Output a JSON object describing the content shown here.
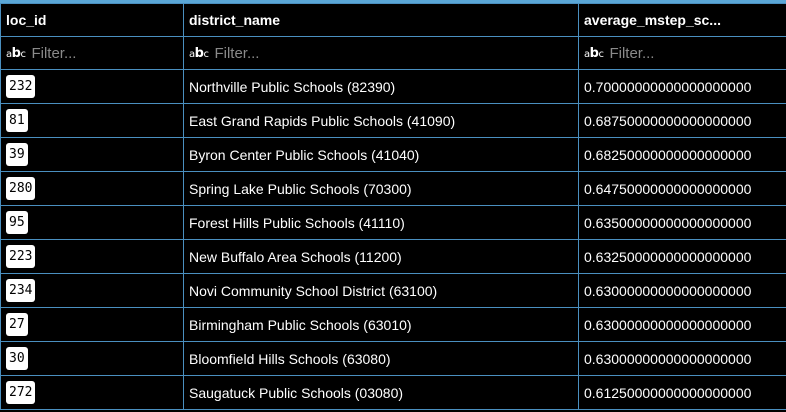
{
  "columns": [
    {
      "key": "loc_id",
      "label": "loc_id",
      "filter_placeholder": "Filter..."
    },
    {
      "key": "district_name",
      "label": "district_name",
      "filter_placeholder": "Filter..."
    },
    {
      "key": "average_mstep",
      "label": "average_mstep_sc...",
      "filter_placeholder": "Filter..."
    }
  ],
  "filter_icon": "abc-text-type-icon",
  "rows": [
    {
      "loc_id": "232",
      "district_name": "Northville Public Schools (82390)",
      "average": "0.70000000000000000000"
    },
    {
      "loc_id": "81",
      "district_name": "East Grand Rapids Public Schools (41090)",
      "average": "0.68750000000000000000"
    },
    {
      "loc_id": "39",
      "district_name": "Byron Center Public Schools (41040)",
      "average": "0.68250000000000000000"
    },
    {
      "loc_id": "280",
      "district_name": "Spring Lake Public Schools (70300)",
      "average": "0.64750000000000000000"
    },
    {
      "loc_id": "95",
      "district_name": "Forest Hills Public Schools (41110)",
      "average": "0.63500000000000000000"
    },
    {
      "loc_id": "223",
      "district_name": "New Buffalo Area Schools (11200)",
      "average": "0.63250000000000000000"
    },
    {
      "loc_id": "234",
      "district_name": "Novi Community School District (63100)",
      "average": "0.63000000000000000000"
    },
    {
      "loc_id": "27",
      "district_name": "Birmingham Public Schools (63010)",
      "average": "0.63000000000000000000"
    },
    {
      "loc_id": "30",
      "district_name": "Bloomfield Hills Schools (63080)",
      "average": "0.63000000000000000000"
    },
    {
      "loc_id": "272",
      "district_name": "Saugatuck Public Schools (03080)",
      "average": "0.61250000000000000000"
    }
  ],
  "colors": {
    "background": "#000000",
    "grid_border": "#4a8fbf",
    "top_accent": "#5aa6d6",
    "chip_background": "#ffffff"
  }
}
